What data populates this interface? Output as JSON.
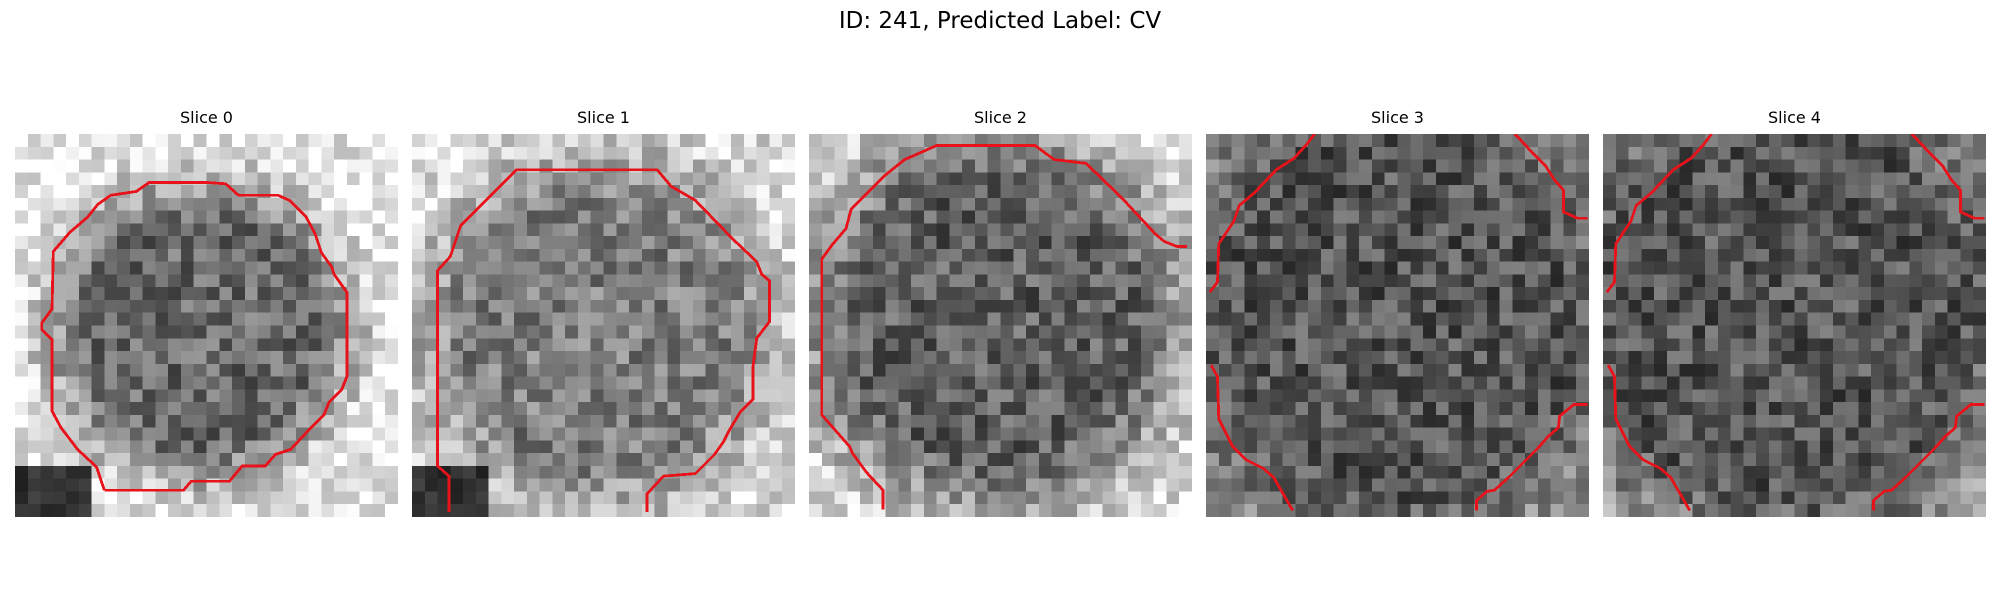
{
  "figure": {
    "title": "ID: 241, Predicted Label: CV"
  },
  "slices": [
    {
      "title": "Slice 0"
    },
    {
      "title": "Slice 1"
    },
    {
      "title": "Slice 2"
    },
    {
      "title": "Slice 3"
    },
    {
      "title": "Slice 4"
    }
  ],
  "colors": {
    "contour": "#e8121a",
    "background": "#ffffff"
  }
}
